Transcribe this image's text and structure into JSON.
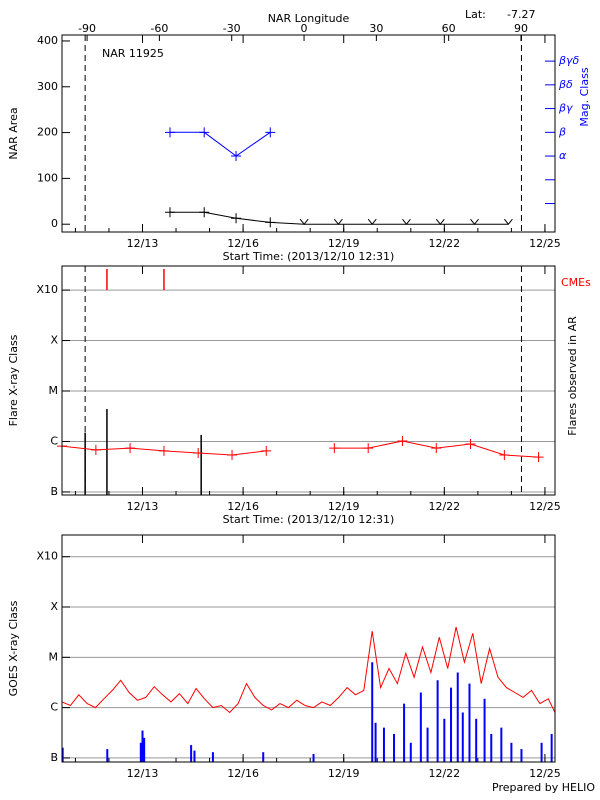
{
  "chart_data": [
    {
      "type": "line",
      "title": "NAR 11925",
      "lat_label": "Lat:",
      "latitude": -7.27,
      "x2label": "NAR Longitude",
      "x2lim": [
        -100.4,
        104.1
      ],
      "x2ticks": [
        -90,
        -60,
        -30,
        0,
        30,
        60,
        90
      ],
      "xlabel": "Start Time: (2013/12/10 12:31)",
      "xlim": [
        10.6,
        25.3
      ],
      "xticks": [
        {
          "value": 13,
          "label": "12/13"
        },
        {
          "value": 16,
          "label": "12/16"
        },
        {
          "value": 19,
          "label": "12/19"
        },
        {
          "value": 22,
          "label": "12/22"
        },
        {
          "value": 25,
          "label": "12/25"
        }
      ],
      "ylabel": "NAR Area",
      "ylim": [
        -17,
        413
      ],
      "yticks": [
        0,
        100,
        200,
        300,
        400
      ],
      "y2label": "Mag. Class",
      "y2color": "#0000ff",
      "y2lim": [
        -0.2,
        8.1
      ],
      "y2ticks": [
        {
          "value": 1,
          "label": null
        },
        {
          "value": 2,
          "label": null
        },
        {
          "value": 3,
          "label": "α"
        },
        {
          "value": 4,
          "label": "β"
        },
        {
          "value": 5,
          "label": "βγ"
        },
        {
          "value": 6,
          "label": "βδ"
        },
        {
          "value": 7,
          "label": "βγδ"
        }
      ],
      "vlines": [
        11.29,
        24.3
      ],
      "series": [
        {
          "color": "#000000",
          "marker": "plus",
          "x": [
            13.82,
            14.84,
            15.79,
            16.81,
            17.82,
            18.84,
            19.85,
            20.87,
            21.88,
            22.9,
            23.91
          ],
          "values": [
            26,
            26,
            13,
            4,
            0,
            0,
            0,
            0,
            0,
            0,
            0
          ]
        },
        {
          "color": "#0000ff",
          "marker": "plus",
          "axis": "y2",
          "x": [
            13.82,
            14.84,
            15.79,
            16.81
          ],
          "values": [
            4,
            4,
            3,
            4
          ]
        }
      ]
    },
    {
      "type": "line",
      "log": true,
      "grid": true,
      "xlabel": "Start Time: (2013/12/10 12:31)",
      "xlim": [
        10.6,
        25.3
      ],
      "xticks": [
        {
          "value": 13,
          "label": "12/13"
        },
        {
          "value": 16,
          "label": "12/16"
        },
        {
          "value": 19,
          "label": "12/19"
        },
        {
          "value": 22,
          "label": "12/22"
        },
        {
          "value": 25,
          "label": "12/25"
        }
      ],
      "ylabel": "Flare X-ray Class",
      "y2label": "Flares observed in AR",
      "ylim": [
        8.7e-08,
        0.003
      ],
      "yticks": [
        {
          "value": 1e-07,
          "label": "B"
        },
        {
          "value": 1e-06,
          "label": "C"
        },
        {
          "value": 1e-05,
          "label": "M"
        },
        {
          "value": 0.0001,
          "label": "X"
        },
        {
          "value": 0.001,
          "label": "X10"
        }
      ],
      "vlines": [
        11.29,
        24.3
      ],
      "series": [
        {
          "color": "#ff0000",
          "marker": "plus",
          "x": [
            10.6,
            11.61,
            12.63,
            13.64,
            14.66,
            15.67,
            16.69,
            17.7,
            18.72,
            19.73,
            20.75,
            21.76,
            22.78,
            23.79,
            24.81
          ],
          "values": [
            8.1e-07,
            6.8e-07,
            7.4e-07,
            6.5e-07,
            5.9e-07,
            5.4e-07,
            6.5e-07,
            null,
            7.4e-07,
            7.4e-07,
            1.02e-06,
            7.4e-07,
            8.9e-07,
            5.4e-07,
            4.9e-07
          ]
        }
      ],
      "flares": {
        "color": "#000000",
        "x": [
          11.29,
          11.94,
          14.75
        ],
        "values": [
          1.5e-06,
          4.4e-06,
          1.35e-06
        ]
      },
      "cmes": {
        "label": "CMEs",
        "color": "#ff0000",
        "x": [
          11.94,
          13.64
        ]
      }
    },
    {
      "type": "line",
      "log": true,
      "grid": true,
      "credit": "Prepared by HELIO",
      "xlim": [
        10.6,
        25.3
      ],
      "xticks": [
        {
          "value": 13,
          "label": "12/13"
        },
        {
          "value": 16,
          "label": "12/16"
        },
        {
          "value": 19,
          "label": "12/19"
        },
        {
          "value": 22,
          "label": "12/22"
        },
        {
          "value": 25,
          "label": "12/25"
        }
      ],
      "ylabel": "GOES X-ray Class",
      "ylim": [
        8.3e-08,
        0.0027
      ],
      "yticks": [
        {
          "value": 1e-07,
          "label": "B"
        },
        {
          "value": 1e-06,
          "label": "C"
        },
        {
          "value": 1e-05,
          "label": "M"
        },
        {
          "value": 0.0001,
          "label": "X"
        },
        {
          "value": 0.001,
          "label": "X10"
        }
      ],
      "series": [
        {
          "color": "#ff0000",
          "style": "line",
          "x": [
            10.6,
            10.85,
            11.1,
            11.35,
            11.6,
            11.85,
            12.1,
            12.35,
            12.6,
            12.85,
            13.1,
            13.35,
            13.6,
            13.85,
            14.1,
            14.35,
            14.6,
            14.85,
            15.1,
            15.35,
            15.6,
            15.85,
            16.1,
            16.35,
            16.6,
            16.85,
            17.1,
            17.35,
            17.6,
            17.85,
            18.1,
            18.35,
            18.6,
            18.85,
            19.1,
            19.35,
            19.6,
            19.85,
            20.1,
            20.35,
            20.6,
            20.85,
            21.1,
            21.35,
            21.6,
            21.85,
            22.1,
            22.35,
            22.6,
            22.85,
            23.1,
            23.35,
            23.6,
            23.85,
            24.1,
            24.35,
            24.6,
            24.85,
            25.1,
            25.3
          ],
          "values": [
            1.3e-06,
            1.1e-06,
            1.8e-06,
            1.2e-06,
            1e-06,
            1.5e-06,
            2.2e-06,
            3.5e-06,
            2e-06,
            1.4e-06,
            1.6e-06,
            2.6e-06,
            1.8e-06,
            1.3e-06,
            1.9e-06,
            1.2e-06,
            2.4e-06,
            1.5e-06,
            1e-06,
            1.1e-06,
            8e-07,
            1.2e-06,
            3e-06,
            1.6e-06,
            1.1e-06,
            9e-07,
            1.2e-06,
            1e-06,
            1.4e-06,
            1.1e-06,
            1e-06,
            1.3e-06,
            1.1e-06,
            1.6e-06,
            2.5e-06,
            1.8e-06,
            2.2e-06,
            3.3e-05,
            2.5e-06,
            6e-06,
            3e-06,
            1.2e-05,
            4e-06,
            1.6e-05,
            5e-06,
            2.5e-05,
            6e-06,
            4e-05,
            8e-06,
            3e-05,
            3e-06,
            1.5e-05,
            4e-06,
            2.5e-06,
            2e-06,
            1.6e-06,
            2.2e-06,
            1.2e-06,
            1.5e-06,
            8e-07
          ]
        },
        {
          "color": "#0000ff",
          "style": "spikes",
          "x": [
            10.62,
            11.95,
            12.95,
            13.0,
            13.05,
            14.45,
            14.55,
            15.1,
            16.6,
            18.1,
            19.85,
            19.95,
            20.2,
            20.5,
            20.8,
            21.0,
            21.3,
            21.5,
            21.8,
            22.0,
            22.2,
            22.4,
            22.55,
            22.75,
            22.95,
            23.2,
            23.4,
            23.7,
            24.0,
            24.3,
            24.9,
            25.2
          ],
          "values": [
            1.6e-07,
            1.5e-07,
            2e-07,
            3.5e-07,
            2.5e-07,
            1.8e-07,
            1.4e-07,
            1.3e-07,
            1.3e-07,
            1.2e-07,
            8e-06,
            5e-07,
            4e-07,
            3e-07,
            1.2e-06,
            2e-07,
            2e-06,
            4e-07,
            3.5e-06,
            6e-07,
            2.5e-06,
            5e-06,
            8e-07,
            3e-06,
            6e-07,
            1.5e-06,
            3e-07,
            4e-07,
            2e-07,
            1.5e-07,
            2e-07,
            3e-07
          ]
        }
      ]
    }
  ]
}
